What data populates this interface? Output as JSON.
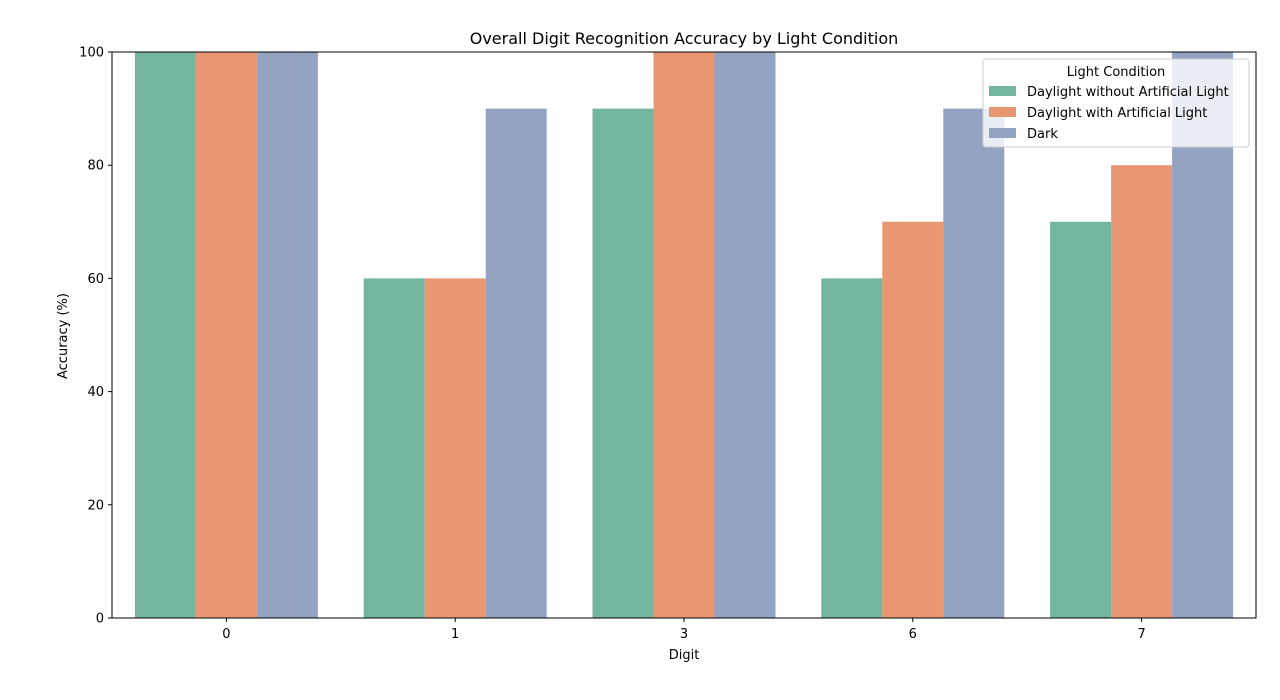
{
  "chart_data": {
    "type": "bar",
    "title": "Overall Digit Recognition Accuracy by Light Condition",
    "xlabel": "Digit",
    "ylabel": "Accuracy (%)",
    "ylim": [
      0,
      100
    ],
    "yticks": [
      0,
      20,
      40,
      60,
      80,
      100
    ],
    "grid": false,
    "categories": [
      "0",
      "1",
      "3",
      "6",
      "7"
    ],
    "legend": {
      "title": "Light Condition",
      "placement": "top-right"
    },
    "series": [
      {
        "name": "Daylight without Artificial Light",
        "color": "#74b59f",
        "values": [
          100,
          60,
          90,
          60,
          70
        ]
      },
      {
        "name": "Daylight with Artificial Light",
        "color": "#e99673",
        "values": [
          100,
          60,
          100,
          70,
          80
        ]
      },
      {
        "name": "Dark",
        "color": "#95a3c3",
        "values": [
          100,
          90,
          100,
          90,
          100
        ]
      }
    ]
  }
}
